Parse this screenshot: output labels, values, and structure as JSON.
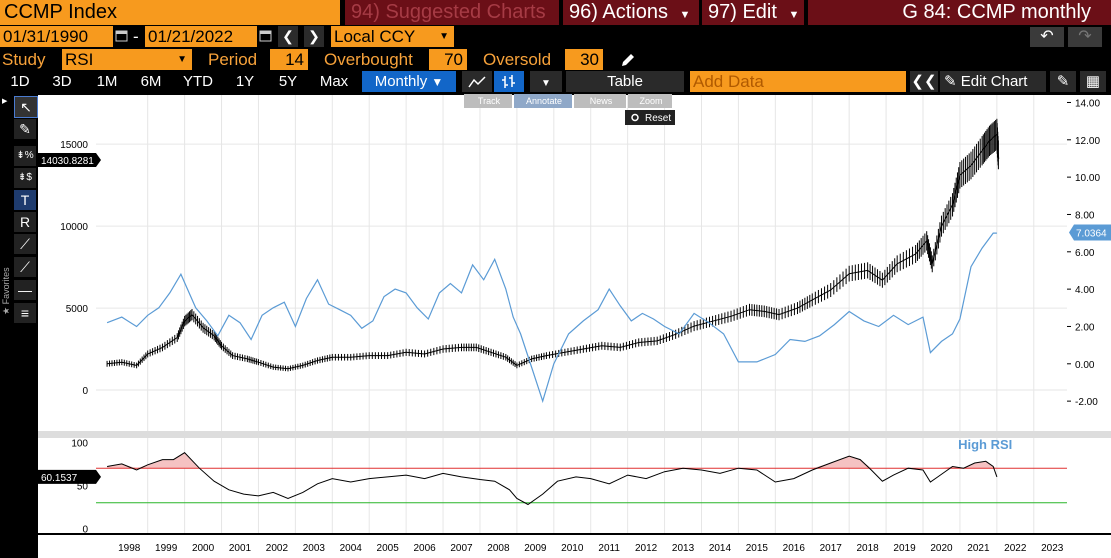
{
  "header": {
    "ticker": "CCMP Index",
    "suggested_num": "94)",
    "suggested_label": "Suggested Charts",
    "actions_num": "96)",
    "actions_label": "Actions",
    "edit_num": "97)",
    "edit_label": "Edit",
    "title": "G 84: CCMP monthly"
  },
  "dates": {
    "start": "01/31/1990",
    "sep": "-",
    "end": "01/21/2022",
    "currency": "Local CCY"
  },
  "study": {
    "study_label": "Study",
    "study_value": "RSI",
    "period_label": "Period",
    "period_value": "14",
    "overbought_label": "Overbought",
    "overbought_value": "70",
    "oversold_label": "Oversold",
    "oversold_value": "30"
  },
  "periods": [
    "1D",
    "3D",
    "1M",
    "6M",
    "YTD",
    "1Y",
    "5Y",
    "Max"
  ],
  "frequency": "Monthly",
  "table_label": "Table",
  "add_data_placeholder": "Add Data",
  "edit_chart_label": "Edit Chart",
  "chart_toolbar": [
    "Track",
    "Annotate",
    "News",
    "Zoom"
  ],
  "reset_label": "Reset",
  "favorites_label": "Favorites",
  "colors": {
    "orange": "#f79a1e",
    "darkred": "#6b0f17",
    "blue_sel": "#1266c8",
    "rsi_line": "#5b9bd5",
    "overbought": "#e03030",
    "oversold": "#29b629"
  },
  "chart_data": {
    "type": "line",
    "years": [
      "1998",
      "1999",
      "2000",
      "2001",
      "2002",
      "2003",
      "2004",
      "2005",
      "2006",
      "2007",
      "2008",
      "2009",
      "2010",
      "2011",
      "2012",
      "2013",
      "2014",
      "2015",
      "2016",
      "2017",
      "2018",
      "2019",
      "2020",
      "2021",
      "2022",
      "2023"
    ],
    "left_axis": {
      "ticks": [
        "15000",
        "10000",
        "5000",
        "0"
      ],
      "ylim": [
        -2500,
        18000
      ]
    },
    "right_axis": {
      "ticks": [
        "14.00",
        "12.00",
        "10.00",
        "8.00",
        "6.00",
        "4.00",
        "2.00",
        "0.00",
        "-2.00"
      ],
      "ylim": [
        -3.6,
        14.4
      ]
    },
    "current_price_label": "14030.8281",
    "current_right_label": "7.0364",
    "series": [
      {
        "name": "CCMP Index",
        "axis": "left",
        "x": [
          1997.9,
          1998.3,
          1998.7,
          1999.0,
          1999.4,
          1999.8,
          2000.0,
          2000.2,
          2000.5,
          2000.8,
          2001.0,
          2001.3,
          2001.7,
          2002.0,
          2002.4,
          2002.8,
          2003.2,
          2003.6,
          2004.0,
          2004.5,
          2005.0,
          2005.5,
          2006.0,
          2006.5,
          2007.0,
          2007.5,
          2007.9,
          2008.3,
          2008.7,
          2009.0,
          2009.4,
          2009.8,
          2010.3,
          2010.8,
          2011.3,
          2011.8,
          2012.3,
          2012.8,
          2013.3,
          2013.8,
          2014.3,
          2014.8,
          2015.3,
          2015.7,
          2016.1,
          2016.6,
          2017.0,
          2017.5,
          2018.0,
          2018.5,
          2018.9,
          2019.3,
          2019.8,
          2020.1,
          2020.25,
          2020.5,
          2020.8,
          2021.0,
          2021.3,
          2021.6,
          2021.8,
          2022.0,
          2022.05
        ],
        "y": [
          1600,
          1700,
          1500,
          2200,
          2600,
          3200,
          4200,
          4600,
          3800,
          3300,
          2700,
          2100,
          1900,
          1700,
          1400,
          1300,
          1500,
          1800,
          2000,
          2000,
          2100,
          2100,
          2300,
          2200,
          2500,
          2600,
          2600,
          2300,
          2000,
          1500,
          1900,
          2100,
          2300,
          2500,
          2700,
          2600,
          2900,
          3000,
          3400,
          3900,
          4200,
          4500,
          4900,
          4800,
          4600,
          5000,
          5500,
          6100,
          7100,
          7300,
          6700,
          7700,
          8300,
          9100,
          7700,
          10000,
          11300,
          13100,
          13700,
          14600,
          15200,
          15600,
          14100
        ]
      },
      {
        "name": "RSI",
        "axis": "right",
        "x": [
          1997.9,
          1998.3,
          1998.7,
          1999.0,
          1999.3,
          1999.6,
          1999.9,
          2000.1,
          2000.3,
          2000.6,
          2000.9,
          2001.2,
          2001.5,
          2001.8,
          2002.1,
          2002.4,
          2002.7,
          2003.0,
          2003.3,
          2003.6,
          2003.9,
          2004.2,
          2004.5,
          2004.8,
          2005.1,
          2005.4,
          2005.7,
          2006.0,
          2006.3,
          2006.6,
          2006.9,
          2007.2,
          2007.5,
          2007.8,
          2008.1,
          2008.4,
          2008.7,
          2008.9,
          2009.1,
          2009.4,
          2009.7,
          2010.0,
          2010.4,
          2010.8,
          2011.2,
          2011.5,
          2011.8,
          2012.1,
          2012.4,
          2012.7,
          2013.0,
          2013.4,
          2013.8,
          2014.2,
          2014.6,
          2015.0,
          2015.5,
          2016.0,
          2016.4,
          2016.8,
          2017.2,
          2017.6,
          2018.0,
          2018.4,
          2018.8,
          2019.2,
          2019.6,
          2020.0,
          2020.2,
          2020.5,
          2020.8,
          2021.0,
          2021.3,
          2021.6,
          2021.9,
          2022.0
        ],
        "y": [
          2.2,
          2.5,
          2.0,
          2.6,
          3.0,
          3.8,
          4.8,
          3.9,
          3.0,
          2.3,
          1.5,
          2.6,
          2.2,
          1.3,
          2.6,
          3.0,
          3.3,
          2.0,
          3.5,
          4.5,
          3.2,
          2.9,
          2.6,
          1.9,
          2.3,
          3.6,
          4.0,
          3.8,
          3.0,
          2.4,
          3.8,
          4.3,
          3.8,
          5.3,
          4.5,
          5.6,
          4.0,
          2.5,
          1.6,
          -0.2,
          -2.0,
          0.0,
          1.6,
          2.3,
          2.9,
          4.0,
          3.1,
          2.3,
          2.7,
          2.4,
          2.0,
          1.6,
          2.7,
          2.2,
          1.6,
          0.1,
          0.1,
          0.5,
          1.3,
          1.2,
          1.5,
          2.1,
          2.8,
          2.3,
          2.0,
          2.6,
          2.1,
          2.5,
          0.6,
          1.2,
          1.6,
          2.4,
          5.2,
          6.2,
          7.0,
          7.0
        ]
      },
      {
        "name": "RSI (14)",
        "axis": "rsi",
        "x": [
          1997.9,
          1998.3,
          1998.7,
          1999.0,
          1999.4,
          1999.7,
          2000.0,
          2000.4,
          2000.8,
          2001.2,
          2001.6,
          2002.0,
          2002.4,
          2002.8,
          2003.2,
          2003.6,
          2004.0,
          2004.5,
          2005.0,
          2005.5,
          2006.0,
          2006.5,
          2007.0,
          2007.5,
          2008.0,
          2008.4,
          2008.8,
          2009.0,
          2009.3,
          2009.7,
          2010.1,
          2010.6,
          2011.0,
          2011.5,
          2012.0,
          2012.5,
          2013.0,
          2013.5,
          2014.0,
          2014.5,
          2015.0,
          2015.5,
          2016.0,
          2016.5,
          2017.0,
          2017.5,
          2018.0,
          2018.3,
          2018.6,
          2018.9,
          2019.2,
          2019.6,
          2020.0,
          2020.2,
          2020.4,
          2020.8,
          2021.1,
          2021.4,
          2021.7,
          2021.9,
          2022.0
        ],
        "y": [
          72,
          75,
          68,
          74,
          80,
          80,
          88,
          70,
          55,
          45,
          40,
          38,
          42,
          35,
          42,
          52,
          58,
          54,
          58,
          60,
          62,
          58,
          64,
          60,
          57,
          55,
          45,
          35,
          28,
          40,
          55,
          60,
          58,
          52,
          62,
          58,
          66,
          70,
          68,
          64,
          70,
          68,
          54,
          58,
          68,
          76,
          84,
          80,
          68,
          55,
          62,
          70,
          68,
          54,
          60,
          72,
          70,
          76,
          78,
          72,
          60
        ],
        "ylim": [
          -5,
          105
        ],
        "ticks": [
          "100",
          "50",
          "0"
        ],
        "current_label": "60.1537",
        "overbought": 70,
        "oversold": 30,
        "annotation": "High RSI"
      }
    ]
  }
}
